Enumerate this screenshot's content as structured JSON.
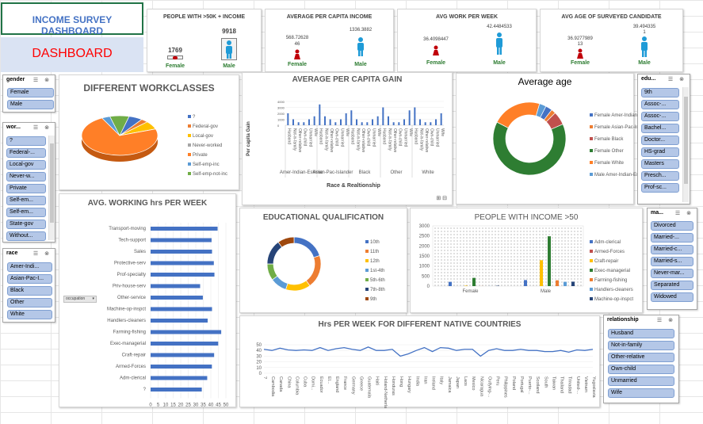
{
  "header": {
    "title": "INCOME SURVEY DASHBOARD",
    "subtitle": "DASHBOARD",
    "title_color": "#4472c4",
    "subtitle_color": "#ff0000"
  },
  "kpis": [
    {
      "title": "PEOPLE WITH >50K + INCOME",
      "female_value": "1769",
      "male_value": "9918",
      "female_label": "Female",
      "male_label": "Male"
    },
    {
      "title": "AVERAGE PER CAPITA INCOME",
      "female_value": "568.72628",
      "female_sub": "46",
      "male_value": "1336.3882",
      "female_label": "Female",
      "male_label": "Male"
    },
    {
      "title": "AVG WORK PER WEEK",
      "female_value": "36.4098447",
      "male_value": "42.4484533",
      "female_label": "Female",
      "male_label": "Male"
    },
    {
      "title": "AVG AGE OF SURVEYED CANDIDATE",
      "female_value": "36.9277989",
      "female_sub": "13",
      "male_value": "39.494335",
      "male_sub": "1",
      "female_label": "Female",
      "male_label": "Male"
    }
  ],
  "slicers": {
    "gender": {
      "title": "gender",
      "items": [
        "Female",
        "Male"
      ]
    },
    "workclass": {
      "title": "wor...",
      "items": [
        "?",
        "Federal-...",
        "Local-gov",
        "Never-w...",
        "Private",
        "Self-em...",
        "Self-em...",
        "State-gov",
        "Without..."
      ]
    },
    "race": {
      "title": "race",
      "items": [
        "Amer-Indi...",
        "Asian-Pac-I...",
        "Black",
        "Other",
        "White"
      ]
    },
    "education": {
      "title": "edu...",
      "items": [
        "9th",
        "Assoc-...",
        "Assoc-...",
        "Bachel...",
        "Doctor...",
        "HS-grad",
        "Masters",
        "Presch...",
        "Prof-sc..."
      ]
    },
    "marital": {
      "title": "ma...",
      "items": [
        "Divorced",
        "Married-...",
        "Married-c...",
        "Married-s...",
        "Never-mar...",
        "Separated",
        "Widowed"
      ]
    },
    "relationship": {
      "title": "relationship",
      "items": [
        "Husband",
        "Not-in-family",
        "Other-relative",
        "Own-child",
        "Unmarried",
        "Wife"
      ]
    }
  },
  "chart_data": [
    {
      "type": "pie",
      "title": "DIFFERENT WORKCLASSES",
      "categories": [
        "?",
        "Federal-gov",
        "Local-gov",
        "Never-worked",
        "Private",
        "Self-emp-inc",
        "Self-emp-not-inc"
      ],
      "values": [
        5.6,
        2.9,
        6.4,
        0.1,
        69.4,
        3.4,
        7.8
      ],
      "colors": [
        "#4472c4",
        "#ed7d31",
        "#ffc000",
        "#a5a5a5",
        "#ff7f27",
        "#5b9bd5",
        "#70ad47"
      ],
      "legend": "right"
    },
    {
      "type": "bar",
      "title": "AVERAGE PER CAPITA GAIN",
      "xlabel": "Race & Realtionship",
      "ylabel": "Per capita Gain",
      "groups": [
        "Amer-Indian-Eskimo",
        "Asian-Pac-Islander",
        "Black",
        "Other",
        "White"
      ],
      "categories": [
        "Husband",
        "Not-in-family",
        "Other-relative",
        "Own-child",
        "Unmarried",
        "Wife"
      ],
      "values": [
        [
          4,
          2,
          1,
          1,
          2,
          3
        ],
        [
          7,
          3,
          2,
          1,
          2,
          4
        ],
        [
          5,
          2,
          1,
          1,
          2,
          3
        ],
        [
          6,
          3,
          1,
          1,
          2,
          5
        ],
        [
          6,
          2,
          1,
          1,
          2,
          4
        ]
      ],
      "ylim": [
        0,
        8
      ],
      "color": "#4472c4"
    },
    {
      "type": "pie",
      "title": "Average age",
      "categories": [
        "Female Amer-Indian-Eskimo",
        "Female Asian-Pac-Islander",
        "Female Black",
        "Female Other",
        "Female White",
        "Male Amer-Indian-Eskimo"
      ],
      "values": [
        3,
        2,
        6,
        64,
        22,
        3
      ],
      "colors": [
        "#4472c4",
        "#ed7d31",
        "#c0504d",
        "#2e7d32",
        "#ff7f27",
        "#5b9bd5"
      ],
      "donut": true,
      "legend": "right"
    },
    {
      "type": "bar",
      "orientation": "horizontal",
      "title": "AVG. WORKING hrs PER WEEK",
      "filter_label": "occupation",
      "categories": [
        "Transport-moving",
        "Tech-support",
        "Sales",
        "Protective-serv",
        "Prof-specialty",
        "Priv-house-serv",
        "Other-service",
        "Machine-op-inspct",
        "Handlers-cleaners",
        "Farming-fishing",
        "Exec-managerial",
        "Craft-repair",
        "Armed-Forces",
        "Adm-clerical",
        "?"
      ],
      "values": [
        44.5,
        40.5,
        40.8,
        42,
        42.4,
        32.9,
        34.7,
        40.8,
        37.9,
        46.9,
        44.9,
        42.2,
        40.7,
        37.6,
        34
      ],
      "xticks": [
        0,
        5,
        10,
        15,
        20,
        25,
        30,
        35,
        40,
        45,
        50
      ],
      "xlim": [
        0,
        50
      ],
      "color": "#4472c4"
    },
    {
      "type": "pie",
      "title": "EDUCATIONAL QUALIFICATION",
      "categories": [
        "10th",
        "11th",
        "12th",
        "1st-4th",
        "5th-6th",
        "7th-8th",
        "9th"
      ],
      "values": [
        4,
        4,
        3,
        2,
        2,
        3,
        2
      ],
      "donut": true,
      "colors": [
        "#4472c4",
        "#ed7d31",
        "#ffc000",
        "#5b9bd5",
        "#70ad47",
        "#264478",
        "#9e480e"
      ],
      "legend": "right"
    },
    {
      "type": "bar",
      "title": "PEOPLE WITH INCOME >50",
      "groups": [
        "Female",
        "Male"
      ],
      "series": [
        {
          "name": "Adm-clerical",
          "values": [
            211,
            301
          ]
        },
        {
          "name": "Armed-Forces",
          "values": [
            0,
            1
          ]
        },
        {
          "name": "Craft-repair",
          "values": [
            20,
            1289
          ]
        },
        {
          "name": "Exec-managerial",
          "values": [
            410,
            2482
          ]
        },
        {
          "name": "Farming-fishing",
          "values": [
            3,
            290
          ]
        },
        {
          "name": "Handlers-cleaners",
          "values": [
            4,
            214
          ]
        },
        {
          "name": "Machine-op-inspct",
          "values": [
            16,
            220
          ]
        }
      ],
      "yticks": [
        0,
        500,
        1000,
        1500,
        2000,
        2500,
        3000
      ],
      "ylim": [
        0,
        3000
      ],
      "colors": [
        "#4472c4",
        "#c0504d",
        "#ffc000",
        "#2e7d32",
        "#ed7d31",
        "#5b9bd5",
        "#264478"
      ],
      "legend": "right"
    },
    {
      "type": "line",
      "title": "Hrs PER WEEK FOR DIFFERENT NATIVE COUNTRIES",
      "categories": [
        "?",
        "Cambodia",
        "Canada",
        "China",
        "Columbia",
        "Cuba",
        "Domi...",
        "Ecuador",
        "El...",
        "England",
        "France",
        "Germany",
        "Greece",
        "Guatemala",
        "Haiti",
        "Holand-Netherlands",
        "Honduras",
        "Hong",
        "Hungary",
        "India",
        "Iran",
        "Ireland",
        "Italy",
        "Jamaica",
        "Japan",
        "Laos",
        "Mexico",
        "Nicaragua",
        "Outlying-...",
        "Peru",
        "Philippines",
        "Poland",
        "Portugal",
        "Puerto-...",
        "Scotland",
        "South",
        "Taiwan",
        "Thailand",
        "Trinadad",
        "United-...",
        "Vietnam",
        "Yugoslavia"
      ],
      "values": [
        42,
        40,
        44,
        41,
        40,
        41,
        40,
        45,
        40,
        43,
        45,
        42,
        40,
        46,
        40,
        40,
        42,
        30,
        34,
        40,
        45,
        38,
        45,
        44,
        40,
        42,
        42,
        30,
        40,
        43,
        40,
        40,
        42,
        40,
        40,
        38,
        38,
        40,
        37,
        41,
        40,
        42
      ],
      "yticks": [
        0,
        10,
        20,
        30,
        40,
        50
      ],
      "ylim": [
        0,
        50
      ],
      "color": "#4472c4"
    }
  ]
}
